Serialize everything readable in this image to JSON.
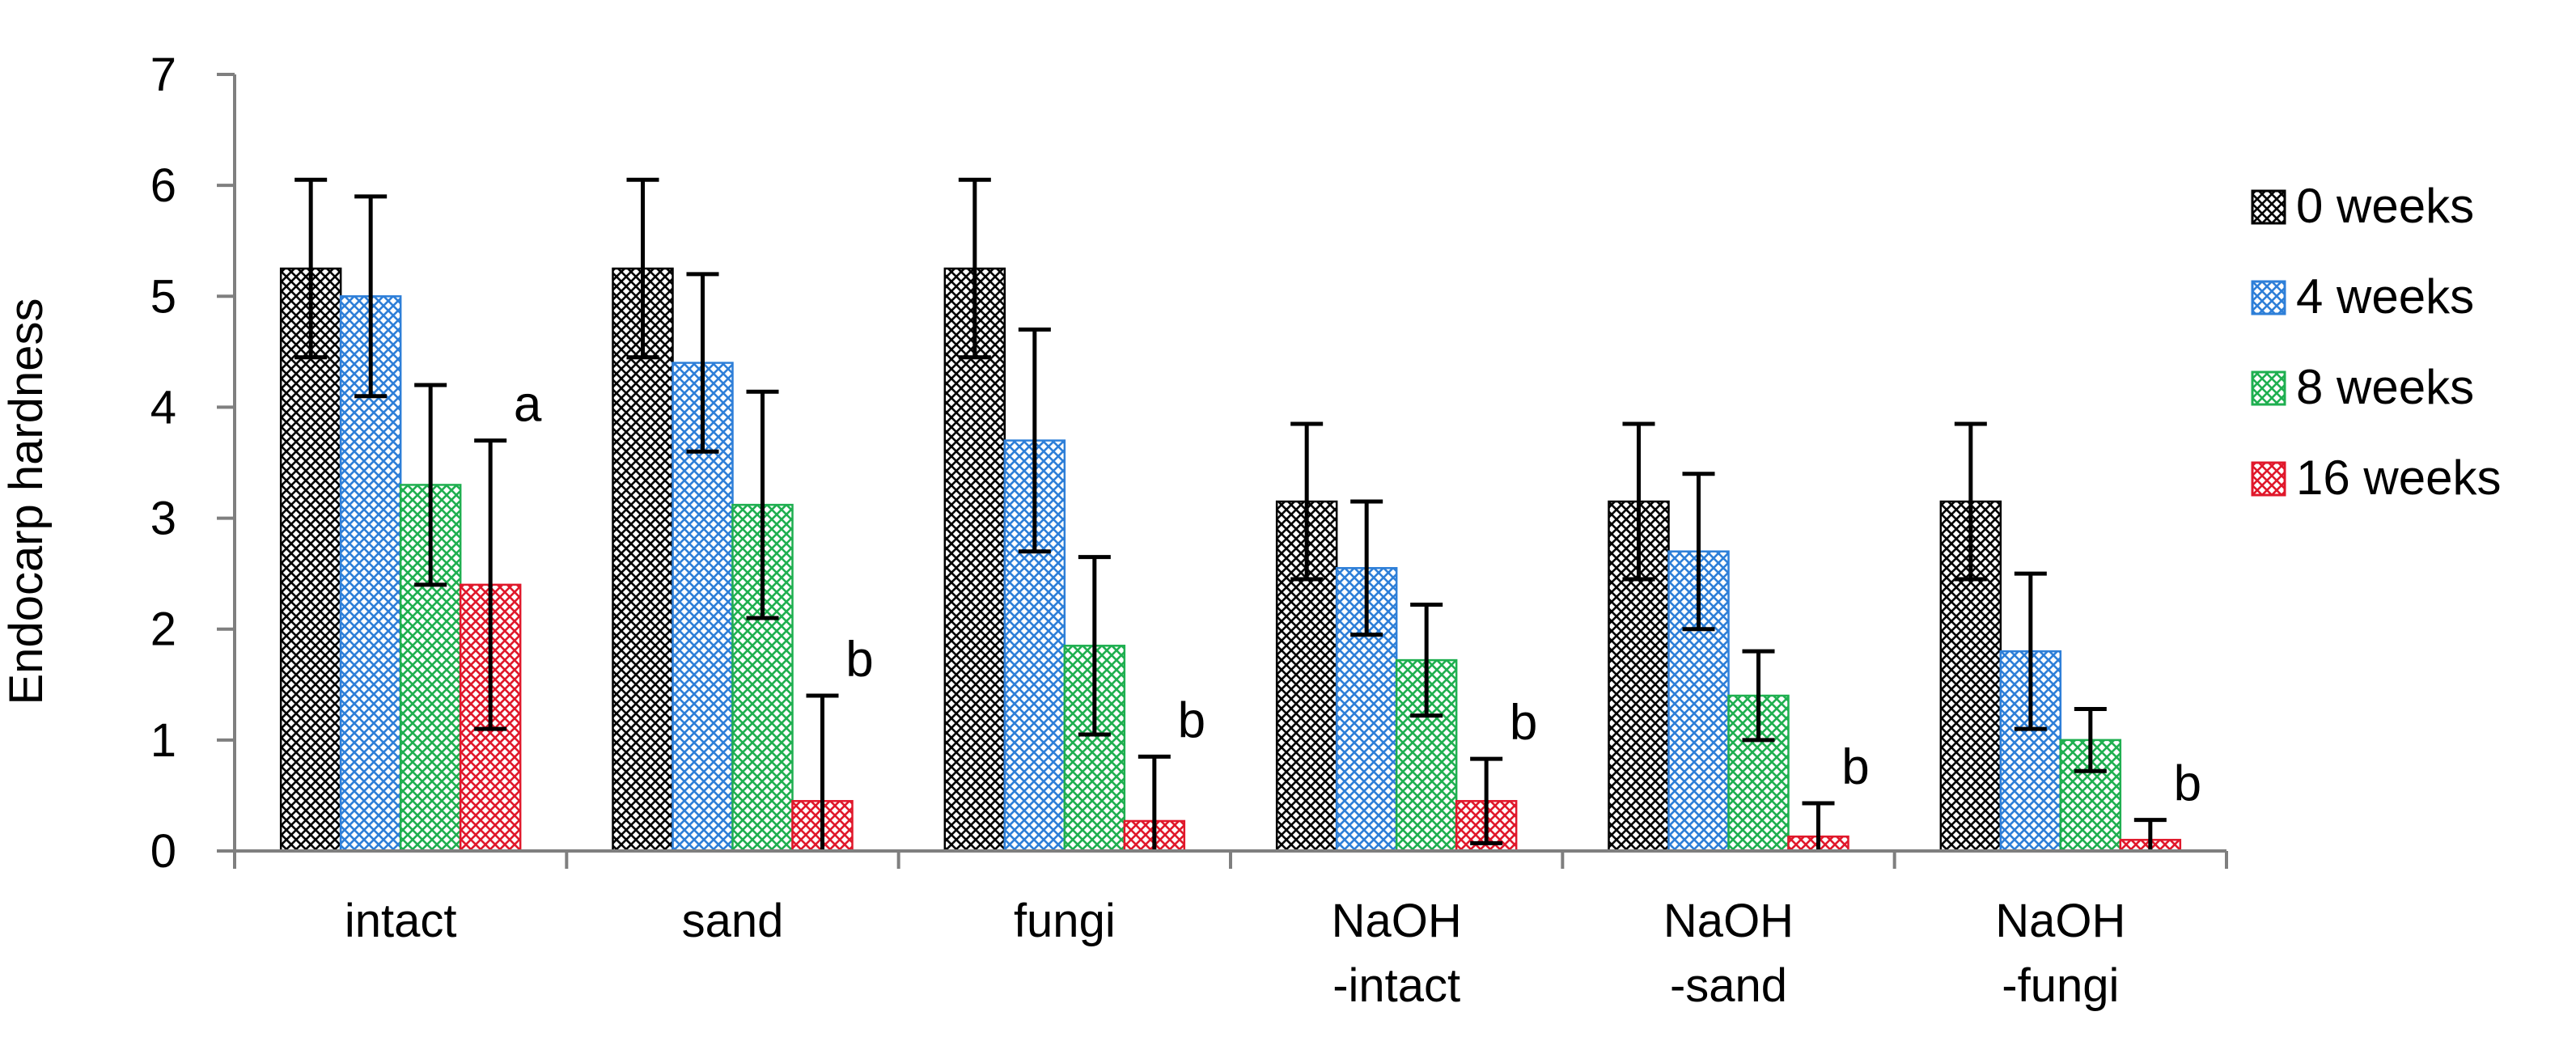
{
  "chart_data": {
    "type": "bar",
    "title": "",
    "xlabel": "",
    "ylabel": "Endocarp hardness",
    "ylim": [
      0,
      7
    ],
    "yticks": [
      "0",
      "1",
      "2",
      "3",
      "4",
      "5",
      "6",
      "7"
    ],
    "grid": false,
    "legend_position": "right",
    "categories": [
      [
        "intact"
      ],
      [
        "sand"
      ],
      [
        "fungi"
      ],
      [
        "NaOH",
        "-intact"
      ],
      [
        "NaOH",
        "-sand"
      ],
      [
        "NaOH",
        "-fungi"
      ]
    ],
    "series": [
      {
        "name": "0 weeks",
        "color": "#000000",
        "values": [
          5.25,
          5.25,
          5.25,
          3.15,
          3.15,
          3.15
        ],
        "errors": [
          0.8,
          0.8,
          0.8,
          0.7,
          0.7,
          0.7
        ]
      },
      {
        "name": "4 weeks",
        "color": "#2E7FD8",
        "values": [
          5.0,
          4.4,
          3.7,
          2.55,
          2.7,
          1.8
        ],
        "errors": [
          0.9,
          0.8,
          1.0,
          0.6,
          0.7,
          0.7
        ]
      },
      {
        "name": "8 weeks",
        "color": "#1FAF50",
        "values": [
          3.3,
          3.12,
          1.85,
          1.72,
          1.4,
          1.0
        ],
        "errors": [
          0.9,
          1.02,
          0.8,
          0.5,
          0.4,
          0.28
        ]
      },
      {
        "name": "16 weeks",
        "color": "#E0182B",
        "values": [
          2.4,
          0.45,
          0.27,
          0.45,
          0.13,
          0.1
        ],
        "errors": [
          1.3,
          0.95,
          0.58,
          0.38,
          0.3,
          0.18
        ]
      }
    ],
    "annotations": [
      "a",
      "b",
      "b",
      "b",
      "b",
      "b"
    ]
  }
}
